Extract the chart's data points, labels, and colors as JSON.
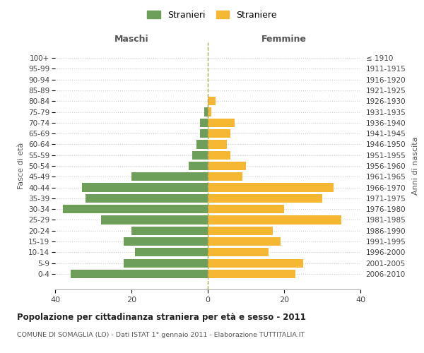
{
  "age_groups": [
    "0-4",
    "5-9",
    "10-14",
    "15-19",
    "20-24",
    "25-29",
    "30-34",
    "35-39",
    "40-44",
    "45-49",
    "50-54",
    "55-59",
    "60-64",
    "65-69",
    "70-74",
    "75-79",
    "80-84",
    "85-89",
    "90-94",
    "95-99",
    "100+"
  ],
  "birth_years": [
    "2006-2010",
    "2001-2005",
    "1996-2000",
    "1991-1995",
    "1986-1990",
    "1981-1985",
    "1976-1980",
    "1971-1975",
    "1966-1970",
    "1961-1965",
    "1956-1960",
    "1951-1955",
    "1946-1950",
    "1941-1945",
    "1936-1940",
    "1931-1935",
    "1926-1930",
    "1921-1925",
    "1916-1920",
    "1911-1915",
    "≤ 1910"
  ],
  "maschi": [
    36,
    22,
    19,
    22,
    20,
    28,
    38,
    32,
    33,
    20,
    5,
    4,
    3,
    2,
    2,
    1,
    0,
    0,
    0,
    0,
    0
  ],
  "femmine": [
    23,
    25,
    16,
    19,
    17,
    35,
    20,
    30,
    33,
    9,
    10,
    6,
    5,
    6,
    7,
    1,
    2,
    0,
    0,
    0,
    0
  ],
  "color_maschi": "#6d9e5a",
  "color_femmine": "#f5b731",
  "title": "Popolazione per cittadinanza straniera per età e sesso - 2011",
  "subtitle": "COMUNE DI SOMAGLIA (LO) - Dati ISTAT 1° gennaio 2011 - Elaborazione TUTTITALIA.IT",
  "label_maschi": "Maschi",
  "label_femmine": "Femmine",
  "ylabel_left": "Fasce di età",
  "ylabel_right": "Anni di nascita",
  "legend_maschi": "Stranieri",
  "legend_femmine": "Straniere",
  "xlim": 40,
  "bg_color": "#ffffff",
  "grid_color": "#cccccc"
}
